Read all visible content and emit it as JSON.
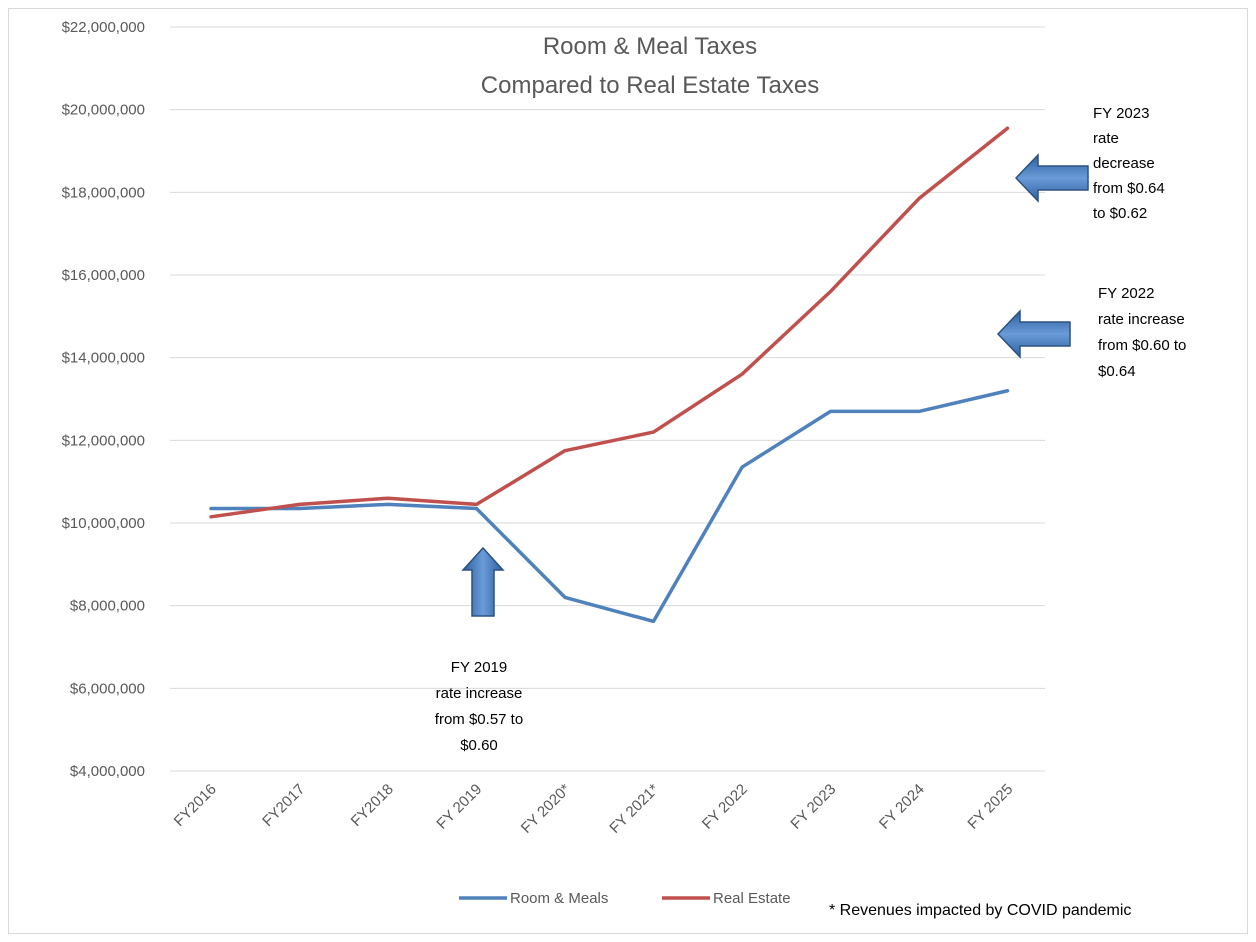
{
  "chart_data": {
    "type": "line",
    "title": [
      "Room & Meal Taxes",
      "Compared to Real Estate Taxes"
    ],
    "categories": [
      "FY2016",
      "FY2017",
      "FY2018",
      "FY 2019",
      "FY 2020*",
      "FY 2021*",
      "FY 2022",
      "FY 2023",
      "FY 2024",
      "FY 2025"
    ],
    "series": [
      {
        "name": "Room & Meals",
        "color": "#4f81bd",
        "values": [
          10350000,
          10350000,
          10450000,
          10350000,
          8200000,
          7620000,
          11350000,
          12700000,
          12700000,
          13200000
        ]
      },
      {
        "name": "Real Estate",
        "color": "#c0504d",
        "values": [
          10150000,
          10450000,
          10600000,
          10450000,
          11750000,
          12200000,
          13600000,
          15600000,
          17850000,
          19550000
        ]
      }
    ],
    "ylim": [
      4000000,
      22000000
    ],
    "yticks": [
      "$4,000,000",
      "$6,000,000",
      "$8,000,000",
      "$10,000,000",
      "$12,000,000",
      "$14,000,000",
      "$16,000,000",
      "$18,000,000",
      "$20,000,000",
      "$22,000,000"
    ],
    "grid": true,
    "legend": "bottom",
    "annotations": [
      {
        "id": "fy2019",
        "direction": "up",
        "lines": [
          "FY 2019",
          "rate increase",
          "from $0.57 to",
          "$0.60"
        ]
      },
      {
        "id": "fy2022",
        "direction": "left",
        "lines": [
          "FY 2022",
          "rate increase",
          "from $0.60 to",
          "$0.64"
        ]
      },
      {
        "id": "fy2023",
        "direction": "left",
        "lines": [
          "FY 2023",
          "rate",
          "decrease",
          "from $0.64",
          "to $0.62"
        ]
      }
    ],
    "footnote": "* Revenues impacted by COVID pandemic"
  }
}
